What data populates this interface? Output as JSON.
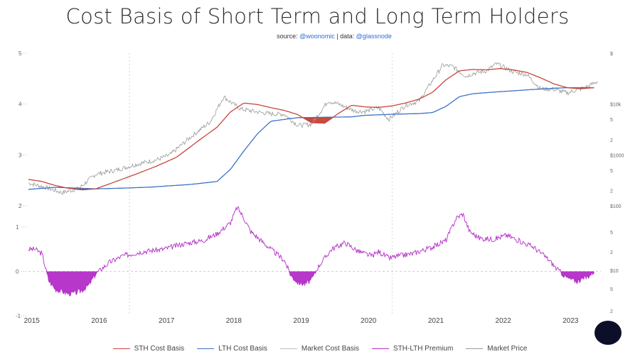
{
  "title": "Cost Basis of Short Term and Long Term Holders",
  "source": {
    "source_label": "source: ",
    "source_handle": "@woonomic",
    "separator": " | data: ",
    "data_handle": "@glassnode"
  },
  "colors": {
    "sth": "#c8463b",
    "lth": "#3b72c4",
    "market_cost": "#bdbdbd",
    "premium": "#b32cc7",
    "market_price": "#9a9a9a",
    "gap_fill": "#c0392b"
  },
  "chart_data": [
    {
      "type": "line",
      "panel": "upper",
      "x_ticks": [
        "2015",
        "2016",
        "2017",
        "2018",
        "2019",
        "2020",
        "2021",
        "2022",
        "2023"
      ],
      "x_range": [
        2015.0,
        2023.5
      ],
      "y_ticks_left": [
        "5",
        "4",
        "3",
        "2"
      ],
      "y_ticks_right": [
        "$",
        "$10k",
        "5",
        "2",
        "$1000",
        "5",
        "2",
        "$100"
      ],
      "log_scale": true,
      "ylim_log10": [
        2.0,
        5.0
      ],
      "series": [
        {
          "name": "STH Cost Basis",
          "x": [
            2015.0,
            2015.2,
            2015.4,
            2015.6,
            2015.8,
            2016.0,
            2016.3,
            2016.6,
            2016.9,
            2017.2,
            2017.5,
            2017.8,
            2018.0,
            2018.2,
            2018.4,
            2018.6,
            2018.8,
            2019.0,
            2019.2,
            2019.4,
            2019.6,
            2019.8,
            2020.0,
            2020.2,
            2020.4,
            2020.6,
            2020.8,
            2021.0,
            2021.2,
            2021.4,
            2021.6,
            2021.8,
            2022.0,
            2022.2,
            2022.4,
            2022.6,
            2022.8,
            2023.0,
            2023.2,
            2023.4
          ],
          "y": [
            330,
            300,
            250,
            220,
            205,
            215,
            300,
            420,
            600,
            900,
            1800,
            3500,
            7000,
            10500,
            9800,
            8500,
            7500,
            6200,
            4300,
            4200,
            6500,
            9500,
            8800,
            8600,
            9200,
            10500,
            12500,
            17000,
            30000,
            45000,
            48000,
            47000,
            50000,
            47000,
            42000,
            33000,
            25000,
            21000,
            20000,
            21000
          ]
        },
        {
          "name": "LTH Cost Basis",
          "x": [
            2015.0,
            2015.4,
            2015.8,
            2016.0,
            2016.4,
            2016.8,
            2017.0,
            2017.4,
            2017.8,
            2018.0,
            2018.2,
            2018.4,
            2018.6,
            2019.0,
            2019.4,
            2019.8,
            2020.0,
            2020.4,
            2020.8,
            2021.0,
            2021.2,
            2021.4,
            2021.6,
            2022.0,
            2022.4,
            2022.8,
            2023.0,
            2023.4
          ],
          "y": [
            210,
            230,
            220,
            215,
            222,
            232,
            242,
            262,
            300,
            520,
            1200,
            2600,
            4600,
            5400,
            5500,
            5600,
            6000,
            6300,
            6500,
            6800,
            9000,
            14000,
            16000,
            17500,
            19000,
            20500,
            21000,
            21000
          ]
        },
        {
          "name": "Market Price",
          "x": [
            2015.0,
            2015.25,
            2015.5,
            2015.75,
            2016.0,
            2016.3,
            2016.6,
            2016.9,
            2017.1,
            2017.4,
            2017.7,
            2017.9,
            2018.0,
            2018.15,
            2018.4,
            2018.6,
            2018.8,
            2019.0,
            2019.2,
            2019.45,
            2019.6,
            2019.85,
            2020.0,
            2020.2,
            2020.35,
            2020.6,
            2020.8,
            2021.0,
            2021.15,
            2021.3,
            2021.5,
            2021.6,
            2021.8,
            2021.95,
            2022.2,
            2022.4,
            2022.6,
            2022.8,
            2023.0,
            2023.3,
            2023.45
          ],
          "y": [
            280,
            230,
            180,
            220,
            420,
            500,
            650,
            800,
            1000,
            2200,
            4500,
            14000,
            11000,
            8000,
            7000,
            6400,
            6300,
            3800,
            4000,
            11500,
            10000,
            7300,
            7200,
            8500,
            5000,
            9500,
            11500,
            29000,
            58000,
            55000,
            35000,
            40000,
            45000,
            62000,
            43000,
            38000,
            20000,
            19500,
            16500,
            22000,
            28000
          ]
        }
      ]
    },
    {
      "type": "area",
      "panel": "lower",
      "name": "STH-LTH Premium",
      "y_ticks_left": [
        "1",
        "0",
        "-1"
      ],
      "ylim": [
        -1,
        1
      ],
      "x": [
        2015.0,
        2015.1,
        2015.2,
        2015.3,
        2015.4,
        2015.5,
        2015.6,
        2015.7,
        2015.8,
        2015.9,
        2016.0,
        2016.2,
        2016.4,
        2016.7,
        2017.0,
        2017.3,
        2017.6,
        2017.8,
        2018.0,
        2018.1,
        2018.2,
        2018.3,
        2018.45,
        2018.6,
        2018.8,
        2018.9,
        2019.0,
        2019.1,
        2019.2,
        2019.3,
        2019.5,
        2019.7,
        2019.9,
        2020.1,
        2020.2,
        2020.35,
        2020.5,
        2020.7,
        2021.0,
        2021.2,
        2021.35,
        2021.45,
        2021.55,
        2021.7,
        2021.9,
        2022.1,
        2022.3,
        2022.5,
        2022.7,
        2022.85,
        2023.0,
        2023.15,
        2023.3,
        2023.4
      ],
      "y": [
        0.5,
        0.5,
        0.4,
        -0.2,
        -0.4,
        -0.45,
        -0.5,
        -0.48,
        -0.42,
        -0.3,
        -0.05,
        0.2,
        0.35,
        0.45,
        0.5,
        0.62,
        0.7,
        0.85,
        1.1,
        1.45,
        1.2,
        0.9,
        0.7,
        0.5,
        0.25,
        -0.1,
        -0.25,
        -0.28,
        -0.2,
        0.1,
        0.5,
        0.65,
        0.45,
        0.35,
        0.45,
        0.3,
        0.35,
        0.4,
        0.55,
        0.7,
        1.2,
        1.3,
        0.9,
        0.75,
        0.72,
        0.82,
        0.68,
        0.55,
        0.3,
        0.05,
        -0.15,
        -0.22,
        -0.12,
        0.0
      ]
    }
  ],
  "legend": [
    {
      "label": "STH Cost Basis",
      "color_key": "sth"
    },
    {
      "label": "LTH Cost Basis",
      "color_key": "lth"
    },
    {
      "label": "Market Cost Basis",
      "color_key": "market_cost"
    },
    {
      "label": "STH-LTH Premium",
      "color_key": "premium"
    },
    {
      "label": "Market Price",
      "color_key": "market_price"
    }
  ]
}
